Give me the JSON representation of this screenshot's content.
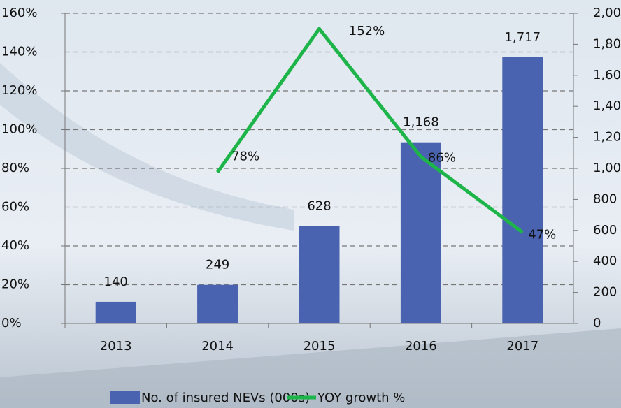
{
  "chart_data": {
    "type": "bar_line",
    "categories": [
      "2013",
      "2014",
      "2015",
      "2016",
      "2017"
    ],
    "series": [
      {
        "name": "No. of insured NEVs (000s)",
        "type": "bar",
        "axis": "y2",
        "color": "#4a63b0",
        "values": [
          140,
          249,
          628,
          1168,
          1717
        ],
        "value_labels": [
          "140",
          "249",
          "628",
          "1,168",
          "1,717"
        ]
      },
      {
        "name": "YOY growth %",
        "type": "line",
        "axis": "y",
        "color": "#1db54a",
        "values": [
          null,
          78,
          152,
          86,
          47
        ],
        "value_labels": [
          null,
          "78%",
          "152%",
          "86%",
          "47%"
        ]
      }
    ],
    "ylim": [
      0,
      160
    ],
    "yticks": [
      {
        "value": 0,
        "label": "0%"
      },
      {
        "value": 20,
        "label": "20%"
      },
      {
        "value": 40,
        "label": "40%"
      },
      {
        "value": 60,
        "label": "60%"
      },
      {
        "value": 80,
        "label": "80%"
      },
      {
        "value": 100,
        "label": "100%"
      },
      {
        "value": 120,
        "label": "120%"
      },
      {
        "value": 140,
        "label": "140%"
      },
      {
        "value": 160,
        "label": "160%"
      }
    ],
    "y2lim": [
      0,
      2000
    ],
    "y2ticks": [
      0,
      200,
      400,
      600,
      800,
      {
        "value": 1000,
        "label": "1,000"
      },
      {
        "value": 1200,
        "label": "1,200"
      },
      {
        "value": 1400,
        "label": "1,400"
      },
      {
        "value": 1600,
        "label": "1,600"
      },
      {
        "value": 1800,
        "label": "1,800"
      },
      {
        "value": 2000,
        "label": "2,000"
      }
    ],
    "grid": true,
    "legend": "bottom"
  }
}
